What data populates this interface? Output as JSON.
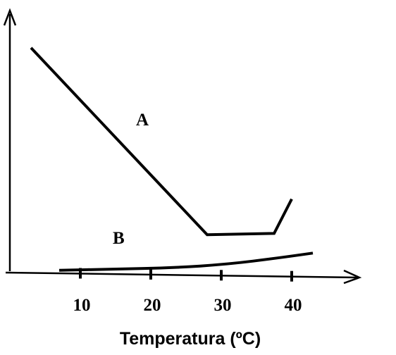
{
  "chart_data": {
    "type": "line",
    "title": "",
    "xlabel": "Temperatura (ºC)",
    "ylabel": "",
    "xlim": [
      -0.5,
      50
    ],
    "ylim": [
      0,
      10
    ],
    "x_ticks": [
      10,
      20,
      30,
      40
    ],
    "x_tick_labels": [
      "10",
      "20",
      "30",
      "40"
    ],
    "y_ticks": [],
    "grid": false,
    "series": [
      {
        "name": "A",
        "color": "#000000",
        "points": [
          [
            3,
            9.2
          ],
          [
            28,
            1.6
          ],
          [
            37.5,
            1.65
          ],
          [
            40,
            3.05
          ]
        ]
      },
      {
        "name": "B",
        "color": "#000000",
        "points": [
          [
            7,
            0.15
          ],
          [
            15,
            0.2
          ],
          [
            23,
            0.25
          ],
          [
            31,
            0.4
          ],
          [
            38,
            0.65
          ],
          [
            43,
            0.85
          ]
        ]
      }
    ]
  }
}
